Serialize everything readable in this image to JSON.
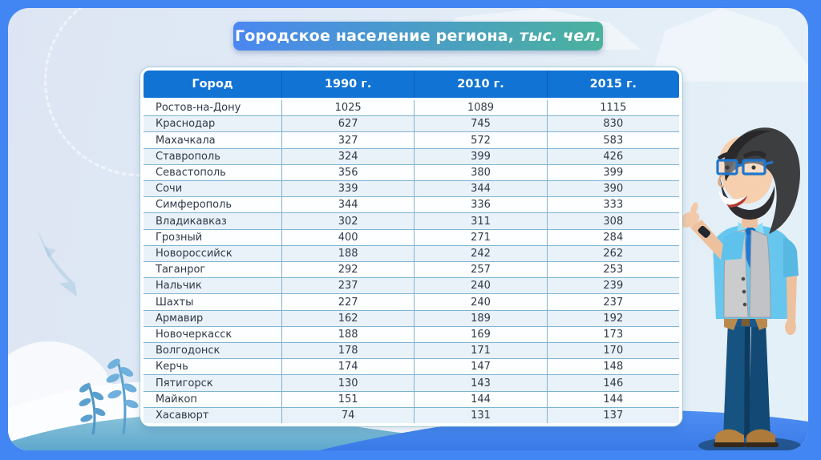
{
  "banner": {
    "title": "Городское население региона,",
    "unit": "тыс. чел."
  },
  "table": {
    "columns": [
      "Город",
      "1990 г.",
      "2010 г.",
      "2015 г."
    ],
    "rows": [
      [
        "Ростов-на-Дону",
        "1025",
        "1089",
        "1115"
      ],
      [
        "Краснодар",
        "627",
        "745",
        "830"
      ],
      [
        "Махачкала",
        "327",
        "572",
        "583"
      ],
      [
        "Ставрополь",
        "324",
        "399",
        "426"
      ],
      [
        "Севастополь",
        "356",
        "380",
        "399"
      ],
      [
        "Сочи",
        "339",
        "344",
        "390"
      ],
      [
        "Симферополь",
        "344",
        "336",
        "333"
      ],
      [
        "Владикавказ",
        "302",
        "311",
        "308"
      ],
      [
        "Грозный",
        "400",
        "271",
        "284"
      ],
      [
        "Новороссийск",
        "188",
        "242",
        "262"
      ],
      [
        "Таганрог",
        "292",
        "257",
        "253"
      ],
      [
        "Нальчик",
        "237",
        "240",
        "239"
      ],
      [
        "Шахты",
        "227",
        "240",
        "237"
      ],
      [
        "Армавир",
        "162",
        "189",
        "192"
      ],
      [
        "Новочеркасск",
        "188",
        "169",
        "173"
      ],
      [
        "Волгодонск",
        "178",
        "171",
        "170"
      ],
      [
        "Керчь",
        "174",
        "147",
        "148"
      ],
      [
        "Пятигорск",
        "130",
        "143",
        "146"
      ],
      [
        "Майкоп",
        "151",
        "144",
        "144"
      ],
      [
        "Хасавюрт",
        "74",
        "131",
        "137"
      ]
    ]
  },
  "chart_data": {
    "type": "table",
    "title": "Городское население региона, тыс. чел.",
    "columns": [
      "Город",
      "1990 г.",
      "2010 г.",
      "2015 г."
    ],
    "categories": [
      "Ростов-на-Дону",
      "Краснодар",
      "Махачкала",
      "Ставрополь",
      "Севастополь",
      "Сочи",
      "Симферополь",
      "Владикавказ",
      "Грозный",
      "Новороссийск",
      "Таганрог",
      "Нальчик",
      "Шахты",
      "Армавир",
      "Новочеркасск",
      "Волгодонск",
      "Керчь",
      "Пятигорск",
      "Майкоп",
      "Хасавюрт"
    ],
    "series": [
      {
        "name": "1990 г.",
        "values": [
          1025,
          627,
          327,
          324,
          356,
          339,
          344,
          302,
          400,
          188,
          292,
          237,
          227,
          162,
          188,
          178,
          174,
          130,
          151,
          74
        ]
      },
      {
        "name": "2010 г.",
        "values": [
          1089,
          745,
          572,
          399,
          380,
          344,
          336,
          311,
          271,
          242,
          257,
          240,
          240,
          189,
          169,
          171,
          147,
          143,
          144,
          131
        ]
      },
      {
        "name": "2015 г.",
        "values": [
          1115,
          830,
          583,
          426,
          399,
          390,
          333,
          308,
          284,
          262,
          253,
          239,
          237,
          192,
          173,
          170,
          148,
          146,
          144,
          137
        ]
      }
    ]
  },
  "illustration": {
    "name": "presenter-man"
  },
  "colors": {
    "frame_blue": "#4186f2",
    "panel_start": "#dde5f4",
    "panel_end": "#e4f0f7",
    "banner_start": "#4a87f0",
    "banner_end": "#4bb29e",
    "table_header": "#1173d4",
    "row_alt": "#e9f1f9",
    "grid_line": "#7db4d2",
    "text_dark": "#2f3a48"
  }
}
